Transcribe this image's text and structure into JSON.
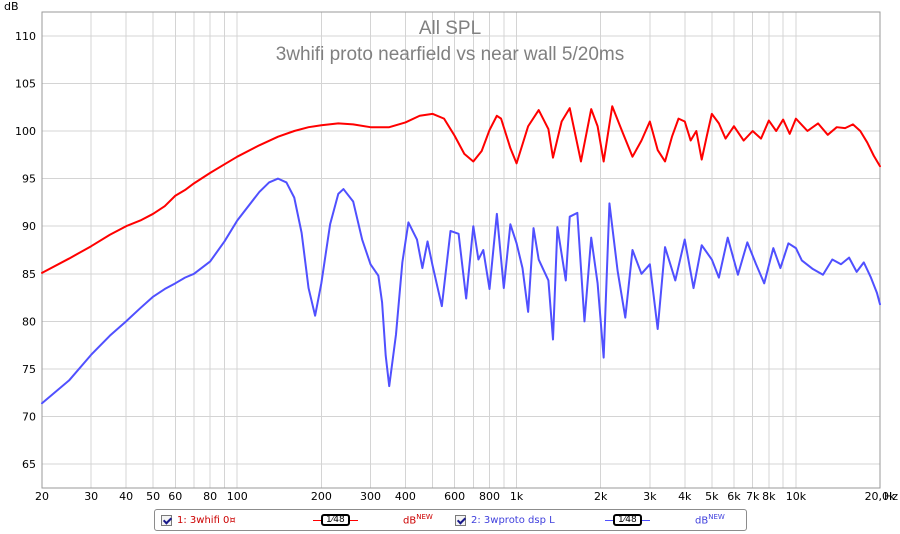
{
  "chart_data": {
    "type": "line",
    "title": "All SPL",
    "subtitle": "3whifi proto nearfield vs near wall 5/20ms",
    "ylabel": "dB",
    "xlabel": "Hz",
    "x_scale": "log",
    "xlim": [
      20,
      20000
    ],
    "ylim": [
      62.5,
      112.5
    ],
    "y_ticks": [
      65,
      70,
      75,
      80,
      85,
      90,
      95,
      100,
      105,
      110
    ],
    "x_ticks": [
      {
        "v": 20,
        "label": "20"
      },
      {
        "v": 30,
        "label": "30"
      },
      {
        "v": 40,
        "label": "40"
      },
      {
        "v": 50,
        "label": "50"
      },
      {
        "v": 60,
        "label": "60"
      },
      {
        "v": 80,
        "label": "80"
      },
      {
        "v": 100,
        "label": "100"
      },
      {
        "v": 200,
        "label": "200"
      },
      {
        "v": 300,
        "label": "300"
      },
      {
        "v": 400,
        "label": "400"
      },
      {
        "v": 600,
        "label": "600"
      },
      {
        "v": 800,
        "label": "800"
      },
      {
        "v": 1000,
        "label": "1k"
      },
      {
        "v": 2000,
        "label": "2k"
      },
      {
        "v": 3000,
        "label": "3k"
      },
      {
        "v": 4000,
        "label": "4k"
      },
      {
        "v": 5000,
        "label": "5k"
      },
      {
        "v": 6000,
        "label": "6k"
      },
      {
        "v": 7000,
        "label": "7k"
      },
      {
        "v": 8000,
        "label": "8k"
      },
      {
        "v": 10000,
        "label": "10k"
      },
      {
        "v": 20000,
        "label": "20,0k"
      }
    ],
    "grid": true,
    "legend_position": "bottom",
    "series": [
      {
        "name": "1: 3whifi 0¤",
        "color": "#ff0000",
        "points": [
          [
            20,
            85.1
          ],
          [
            25,
            86.6
          ],
          [
            30,
            87.9
          ],
          [
            35,
            89.1
          ],
          [
            40,
            90.0
          ],
          [
            45,
            90.6
          ],
          [
            50,
            91.3
          ],
          [
            55,
            92.1
          ],
          [
            60,
            93.2
          ],
          [
            65,
            93.8
          ],
          [
            70,
            94.5
          ],
          [
            80,
            95.6
          ],
          [
            90,
            96.5
          ],
          [
            100,
            97.3
          ],
          [
            120,
            98.5
          ],
          [
            140,
            99.4
          ],
          [
            160,
            100.0
          ],
          [
            180,
            100.4
          ],
          [
            200,
            100.6
          ],
          [
            230,
            100.8
          ],
          [
            260,
            100.7
          ],
          [
            300,
            100.4
          ],
          [
            350,
            100.4
          ],
          [
            400,
            100.9
          ],
          [
            450,
            101.6
          ],
          [
            500,
            101.8
          ],
          [
            550,
            101.3
          ],
          [
            600,
            99.5
          ],
          [
            650,
            97.6
          ],
          [
            700,
            96.8
          ],
          [
            750,
            97.9
          ],
          [
            800,
            100.1
          ],
          [
            850,
            101.6
          ],
          [
            880,
            101.3
          ],
          [
            950,
            98.2
          ],
          [
            1000,
            96.6
          ],
          [
            1100,
            100.5
          ],
          [
            1200,
            102.2
          ],
          [
            1300,
            100.2
          ],
          [
            1350,
            97.2
          ],
          [
            1450,
            101.0
          ],
          [
            1550,
            102.4
          ],
          [
            1700,
            96.8
          ],
          [
            1850,
            102.3
          ],
          [
            1950,
            100.5
          ],
          [
            2050,
            96.8
          ],
          [
            2200,
            102.6
          ],
          [
            2400,
            99.8
          ],
          [
            2600,
            97.3
          ],
          [
            2800,
            99.0
          ],
          [
            3000,
            101.0
          ],
          [
            3200,
            98.0
          ],
          [
            3400,
            96.8
          ],
          [
            3600,
            99.4
          ],
          [
            3800,
            101.3
          ],
          [
            4000,
            101.0
          ],
          [
            4200,
            99.0
          ],
          [
            4400,
            100.0
          ],
          [
            4600,
            97.0
          ],
          [
            4800,
            99.5
          ],
          [
            5000,
            101.8
          ],
          [
            5300,
            100.8
          ],
          [
            5600,
            99.2
          ],
          [
            6000,
            100.5
          ],
          [
            6500,
            99.0
          ],
          [
            7000,
            100.0
          ],
          [
            7500,
            99.2
          ],
          [
            8000,
            101.1
          ],
          [
            8500,
            100.0
          ],
          [
            9000,
            101.2
          ],
          [
            9500,
            99.7
          ],
          [
            10000,
            101.3
          ],
          [
            11000,
            100.0
          ],
          [
            12000,
            100.8
          ],
          [
            13000,
            99.6
          ],
          [
            14000,
            100.4
          ],
          [
            15000,
            100.3
          ],
          [
            16000,
            100.7
          ],
          [
            17000,
            100.0
          ],
          [
            18000,
            98.8
          ],
          [
            19000,
            97.4
          ],
          [
            20000,
            96.3
          ]
        ]
      },
      {
        "name": "2: 3wproto dsp L",
        "color": "#5050ff",
        "points": [
          [
            20,
            71.4
          ],
          [
            25,
            73.8
          ],
          [
            30,
            76.5
          ],
          [
            35,
            78.5
          ],
          [
            40,
            80.0
          ],
          [
            45,
            81.4
          ],
          [
            50,
            82.6
          ],
          [
            55,
            83.4
          ],
          [
            60,
            84.0
          ],
          [
            65,
            84.6
          ],
          [
            70,
            85.0
          ],
          [
            80,
            86.3
          ],
          [
            90,
            88.4
          ],
          [
            100,
            90.6
          ],
          [
            120,
            93.6
          ],
          [
            130,
            94.6
          ],
          [
            140,
            95.0
          ],
          [
            150,
            94.6
          ],
          [
            160,
            93.0
          ],
          [
            170,
            89.3
          ],
          [
            180,
            83.5
          ],
          [
            190,
            80.6
          ],
          [
            200,
            84.0
          ],
          [
            215,
            90.2
          ],
          [
            230,
            93.4
          ],
          [
            240,
            93.9
          ],
          [
            260,
            92.6
          ],
          [
            280,
            88.6
          ],
          [
            300,
            86.0
          ],
          [
            320,
            84.8
          ],
          [
            330,
            82.0
          ],
          [
            340,
            76.4
          ],
          [
            350,
            73.2
          ],
          [
            370,
            78.6
          ],
          [
            390,
            86.2
          ],
          [
            410,
            90.4
          ],
          [
            440,
            88.6
          ],
          [
            460,
            85.6
          ],
          [
            480,
            88.4
          ],
          [
            500,
            85.9
          ],
          [
            540,
            81.6
          ],
          [
            580,
            89.5
          ],
          [
            620,
            89.2
          ],
          [
            660,
            82.4
          ],
          [
            700,
            90.0
          ],
          [
            730,
            86.5
          ],
          [
            760,
            87.5
          ],
          [
            800,
            83.4
          ],
          [
            850,
            91.3
          ],
          [
            900,
            83.5
          ],
          [
            950,
            90.2
          ],
          [
            1000,
            88.2
          ],
          [
            1050,
            85.6
          ],
          [
            1100,
            81.0
          ],
          [
            1150,
            89.8
          ],
          [
            1200,
            86.5
          ],
          [
            1300,
            84.3
          ],
          [
            1350,
            78.1
          ],
          [
            1400,
            89.9
          ],
          [
            1500,
            84.3
          ],
          [
            1550,
            91.0
          ],
          [
            1650,
            91.4
          ],
          [
            1750,
            80.0
          ],
          [
            1850,
            88.8
          ],
          [
            1950,
            84.0
          ],
          [
            2050,
            76.2
          ],
          [
            2150,
            92.4
          ],
          [
            2300,
            85.3
          ],
          [
            2450,
            80.4
          ],
          [
            2600,
            87.5
          ],
          [
            2800,
            85.0
          ],
          [
            3000,
            86.0
          ],
          [
            3200,
            79.2
          ],
          [
            3400,
            87.8
          ],
          [
            3700,
            84.3
          ],
          [
            4000,
            88.6
          ],
          [
            4300,
            83.5
          ],
          [
            4600,
            88.0
          ],
          [
            5000,
            86.5
          ],
          [
            5300,
            84.6
          ],
          [
            5700,
            88.8
          ],
          [
            6200,
            84.9
          ],
          [
            6700,
            88.3
          ],
          [
            7200,
            86.0
          ],
          [
            7700,
            84.0
          ],
          [
            8300,
            87.7
          ],
          [
            8800,
            85.6
          ],
          [
            9400,
            88.2
          ],
          [
            10000,
            87.7
          ],
          [
            10500,
            86.4
          ],
          [
            11500,
            85.5
          ],
          [
            12500,
            84.9
          ],
          [
            13500,
            86.5
          ],
          [
            14500,
            86.0
          ],
          [
            15500,
            86.7
          ],
          [
            16500,
            85.2
          ],
          [
            17500,
            86.2
          ],
          [
            18500,
            84.7
          ],
          [
            19500,
            83.0
          ],
          [
            20000,
            81.8
          ]
        ]
      }
    ]
  },
  "legend": {
    "items": [
      {
        "label": "1: 3whifi 0¤",
        "smoothing": "1⁄48",
        "unit": "dB",
        "unit_sup": "NEW",
        "color": "#ff0000",
        "text_color": "#cc0000"
      },
      {
        "label": "2: 3wproto dsp L",
        "smoothing": "1⁄48",
        "unit": "dB",
        "unit_sup": "NEW",
        "color": "#5050ff",
        "text_color": "#4040dd"
      }
    ]
  }
}
